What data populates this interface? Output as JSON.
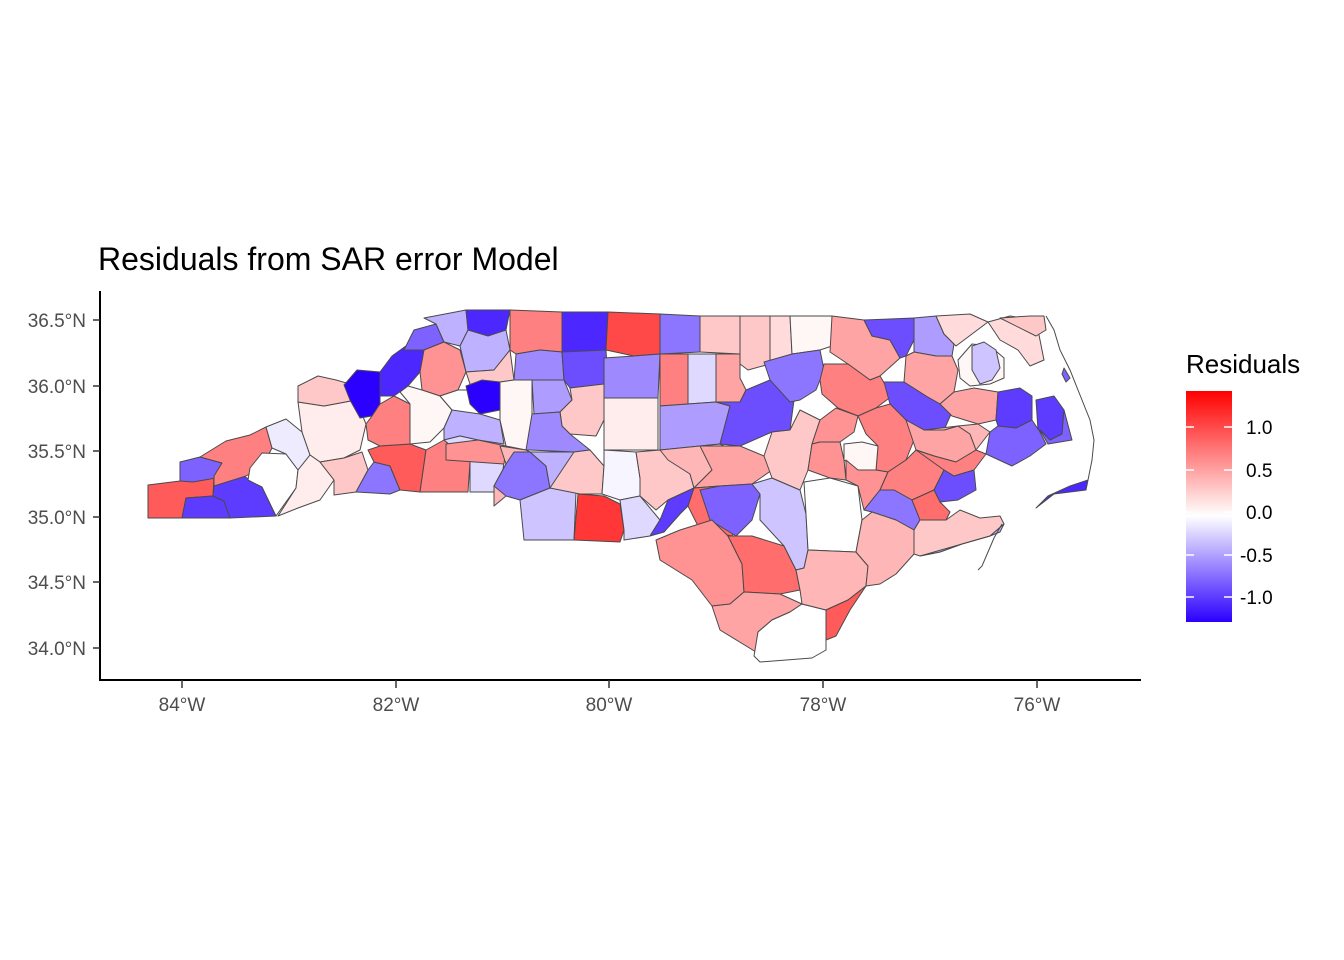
{
  "title": "Residuals from SAR error Model",
  "legend": {
    "title": "Residuals",
    "labels": [
      "1.0",
      "0.5",
      "0.0",
      "-0.5",
      "-1.0"
    ],
    "colors": {
      "low": "#2c00ff",
      "mid": "#ffffff",
      "high": "#ff0000"
    }
  },
  "axes": {
    "x_ticks": [
      "84°W",
      "82°W",
      "80°W",
      "78°W",
      "76°W"
    ],
    "y_ticks": [
      "36.5°N",
      "36.0°N",
      "35.5°N",
      "35.0°N",
      "34.5°N",
      "34.0°N"
    ]
  },
  "map_data": {
    "region": "North Carolina counties",
    "fill_variable": "Residuals",
    "value_range": [
      -1.3,
      1.4
    ],
    "counties": [
      {
        "id": "c1",
        "value": -0.4
      },
      {
        "id": "c2",
        "value": -1.1
      },
      {
        "id": "c3",
        "value": 0.5
      },
      {
        "id": "c4",
        "value": -0.9
      },
      {
        "id": "c5",
        "value": 1.1
      },
      {
        "id": "c6",
        "value": -0.5
      },
      {
        "id": "c7",
        "value": 0.2
      },
      {
        "id": "c8",
        "value": 0.2
      },
      {
        "id": "c9",
        "value": -0.7
      },
      {
        "id": "c10",
        "value": 1.0
      },
      {
        "id": "c11",
        "value": 0.7
      },
      {
        "id": "c12",
        "value": -1.1
      },
      {
        "id": "c13",
        "value": -0.8
      },
      {
        "id": "c14",
        "value": 0.0
      },
      {
        "id": "c15",
        "value": -0.4
      },
      {
        "id": "c16",
        "value": -0.6
      },
      {
        "id": "c17",
        "value": 0.3
      },
      {
        "id": "c18",
        "value": -0.9
      },
      {
        "id": "c19",
        "value": -1.1
      },
      {
        "id": "c20",
        "value": 0.6
      },
      {
        "id": "c21",
        "value": 0.1
      },
      {
        "id": "c22",
        "value": -1.3
      },
      {
        "id": "c23",
        "value": 0.05
      },
      {
        "id": "c24",
        "value": -0.5
      },
      {
        "id": "c25",
        "value": 0.3
      },
      {
        "id": "c26",
        "value": -0.6
      },
      {
        "id": "c27",
        "value": 0.3
      },
      {
        "id": "c28",
        "value": -0.6
      },
      {
        "id": "c29",
        "value": 0.7
      },
      {
        "id": "c30",
        "value": 0.7
      },
      {
        "id": "c31",
        "value": -0.7
      },
      {
        "id": "c32",
        "value": 0.3
      },
      {
        "id": "c33",
        "value": -0.4
      },
      {
        "id": "c34",
        "value": 0.9
      },
      {
        "id": "c35",
        "value": 0.4
      },
      {
        "id": "c36",
        "value": 0.1
      },
      {
        "id": "c37",
        "value": 0.7
      },
      {
        "id": "c38",
        "value": -0.7
      },
      {
        "id": "c39",
        "value": 0.5
      },
      {
        "id": "c40",
        "value": -0.2
      },
      {
        "id": "c41",
        "value": 0.3
      },
      {
        "id": "c42",
        "value": -0.9
      },
      {
        "id": "c43",
        "value": -0.2
      },
      {
        "id": "c44",
        "value": 0.3
      },
      {
        "id": "c45",
        "value": -0.3
      },
      {
        "id": "c46",
        "value": 0.2
      },
      {
        "id": "c47",
        "value": -0.4
      },
      {
        "id": "c48",
        "value": 0.05
      },
      {
        "id": "c49",
        "value": -0.7
      },
      {
        "id": "c50",
        "value": 0.3
      },
      {
        "id": "c51",
        "value": 0.1
      },
      {
        "id": "c52",
        "value": 0.6
      },
      {
        "id": "c53",
        "value": 0.7
      },
      {
        "id": "c54",
        "value": -0.5
      },
      {
        "id": "c55",
        "value": 0.2
      },
      {
        "id": "c56",
        "value": 0.5
      },
      {
        "id": "c57",
        "value": -0.2
      },
      {
        "id": "c58",
        "value": 0.5
      },
      {
        "id": "c59",
        "value": 0.0
      },
      {
        "id": "c60",
        "value": -0.8
      },
      {
        "id": "c61",
        "value": 0.6
      },
      {
        "id": "c62",
        "value": 0.6
      },
      {
        "id": "c63",
        "value": 0.5
      },
      {
        "id": "c64",
        "value": 0.4
      },
      {
        "id": "c65",
        "value": -1.0
      },
      {
        "id": "c66",
        "value": 0.7
      },
      {
        "id": "c67",
        "value": -0.8
      },
      {
        "id": "c68",
        "value": 0.6
      },
      {
        "id": "c69",
        "value": 0.5
      },
      {
        "id": "c70",
        "value": 0.3
      },
      {
        "id": "c71",
        "value": -0.9
      },
      {
        "id": "c72",
        "value": -0.7
      },
      {
        "id": "c73",
        "value": 0.9
      },
      {
        "id": "c74",
        "value": -1.0
      },
      {
        "id": "c75",
        "value": 0.8
      },
      {
        "id": "c76",
        "value": 0.5
      },
      {
        "id": "c77",
        "value": 0.4
      },
      {
        "id": "c78",
        "value": 0.8
      },
      {
        "id": "c79",
        "value": -0.1
      },
      {
        "id": "c80",
        "value": 0.3
      },
      {
        "id": "c81",
        "value": -0.05
      },
      {
        "id": "c82",
        "value": 0.7
      },
      {
        "id": "c83",
        "value": 0.05
      },
      {
        "id": "c84",
        "value": 0.5
      },
      {
        "id": "c85",
        "value": -0.8
      },
      {
        "id": "c86",
        "value": 0.1
      },
      {
        "id": "c87",
        "value": 0.6
      },
      {
        "id": "c88",
        "value": -1.0
      },
      {
        "id": "c89",
        "value": 0.4
      },
      {
        "id": "c90",
        "value": -1.0
      },
      {
        "id": "c91",
        "value": -0.8
      },
      {
        "id": "c92",
        "value": -1.0
      },
      {
        "id": "c93",
        "value": 0.9
      },
      {
        "id": "c94",
        "value": 0.4
      },
      {
        "id": "c95",
        "value": 0.1
      },
      {
        "id": "c96",
        "value": -0.3
      },
      {
        "id": "c97",
        "value": 0.0
      },
      {
        "id": "c98",
        "value": -0.9
      },
      {
        "id": "c99",
        "value": 0.7
      },
      {
        "id": "c100",
        "value": 0.3
      }
    ]
  }
}
